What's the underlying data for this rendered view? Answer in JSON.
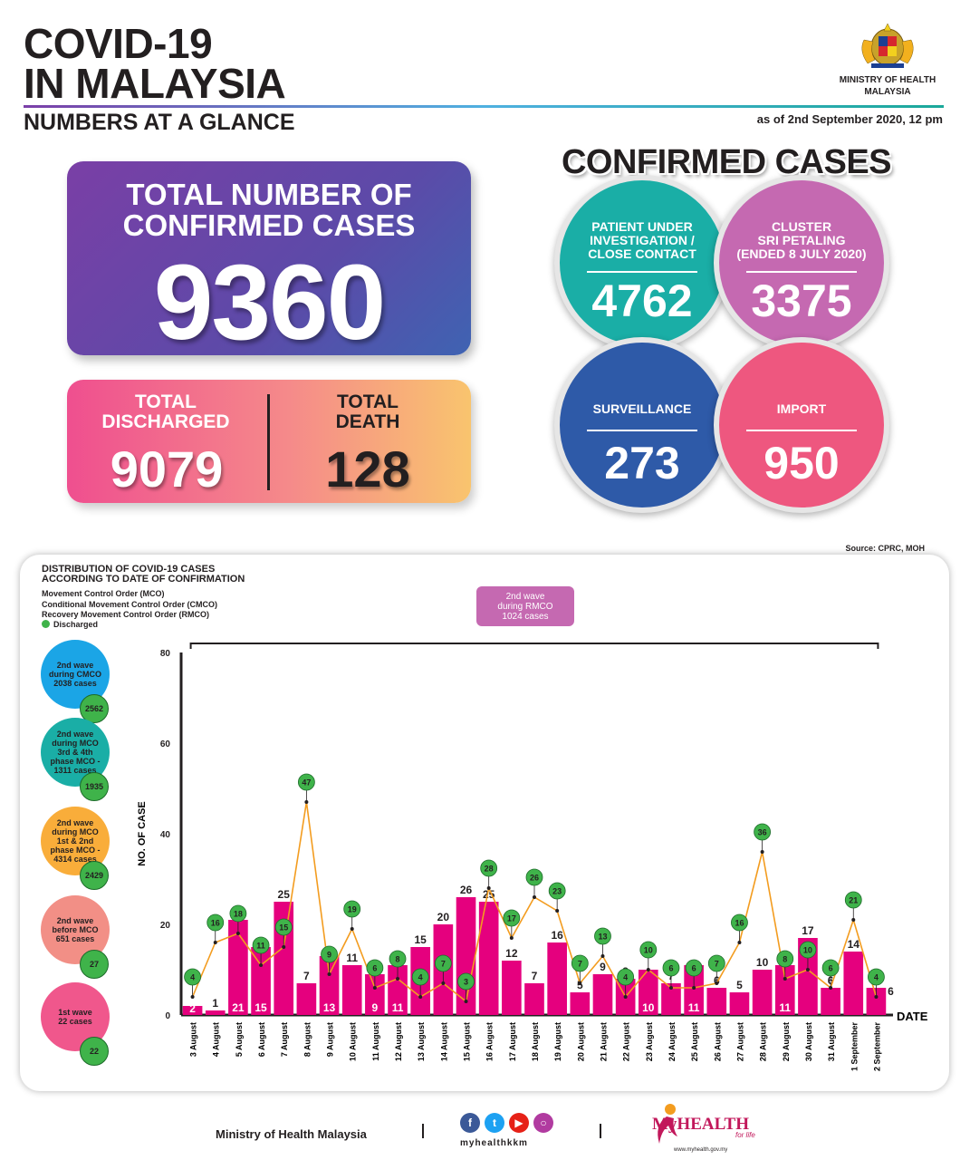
{
  "header": {
    "title_line1": "COVID-19",
    "title_line2": "IN MALAYSIA",
    "subtitle": "NUMBERS AT A GLANCE",
    "ministry_line1": "MINISTRY OF HEALTH",
    "ministry_line2": "MALAYSIA",
    "as_of": "as of 2nd September 2020, 12 pm"
  },
  "totals": {
    "confirmed_label_line1": "TOTAL NUMBER OF",
    "confirmed_label_line2": "CONFIRMED CASES",
    "confirmed_value": "9360",
    "discharged_label_line1": "TOTAL",
    "discharged_label_line2": "DISCHARGED",
    "discharged_value": "9079",
    "death_label_line1": "TOTAL",
    "death_label_line2": "DEATH",
    "death_value": "128"
  },
  "confirmed_cases": {
    "title": "CONFIRMED CASES",
    "pui": {
      "line1": "PATIENT UNDER",
      "line2": "INVESTIGATION /",
      "line3": "CLOSE CONTACT",
      "value": "4762"
    },
    "cluster": {
      "line1": "CLUSTER",
      "line2": "SRI PETALING",
      "line3": "(ENDED 8 JULY 2020)",
      "value": "3375"
    },
    "surveillance": {
      "label": "SURVEILLANCE",
      "value": "273"
    },
    "import": {
      "label": "IMPORT",
      "value": "950"
    }
  },
  "source": "Source: CPRC, MOH",
  "panel": {
    "title_line1": "DISTRIBUTION OF COVID-19 CASES",
    "title_line2": "ACCORDING TO DATE OF CONFIRMATION",
    "legend_mco": "Movement Control Order (MCO)",
    "legend_cmco": "Conditional Movement Control Order (CMCO)",
    "legend_rmco": "Recovery Movement Control Order (RMCO)",
    "legend_discharged": "Discharged",
    "rmco_box": {
      "line1": "2nd wave",
      "line2": "during RMCO",
      "line3": "1024 cases"
    }
  },
  "waves": [
    {
      "lines": [
        "2nd wave",
        "during CMCO",
        "2038 cases"
      ],
      "discharged": "2562",
      "color": "#1ba5e6"
    },
    {
      "lines": [
        "2nd wave",
        "during MCO",
        "3rd & 4th",
        "phase MCO -",
        "1311 cases"
      ],
      "discharged": "1935",
      "color": "#1aaea6"
    },
    {
      "lines": [
        "2nd wave",
        "during MCO",
        "1st & 2nd",
        "phase MCO -",
        "4314 cases"
      ],
      "discharged": "2429",
      "color": "#f9ad3a"
    },
    {
      "lines": [
        "2nd wave",
        "before MCO",
        "651 cases"
      ],
      "discharged": "27",
      "color": "#f28f86"
    },
    {
      "lines": [
        "1st wave",
        "22 cases"
      ],
      "discharged": "22",
      "color": "#f0578c"
    }
  ],
  "chart_data": {
    "type": "bar",
    "categories": [
      "3 August",
      "4 August",
      "5 August",
      "6 August",
      "7 August",
      "8 August",
      "9 August",
      "10 August",
      "11 August",
      "12 August",
      "13 August",
      "14 August",
      "15 August",
      "16 August",
      "17 August",
      "18 August",
      "19 August",
      "20 August",
      "21 August",
      "22 August",
      "23 August",
      "24 August",
      "25 August",
      "26 August",
      "27 August",
      "28 August",
      "29 August",
      "30 August",
      "31 August",
      "1 September",
      "2 September"
    ],
    "series": [
      {
        "name": "",
        "values": [
          2,
          1,
          21,
          15,
          25,
          7,
          13,
          11,
          9,
          11,
          15,
          20,
          26,
          25,
          12,
          7,
          16,
          5,
          9,
          8,
          10,
          7,
          11,
          6,
          5,
          10,
          11,
          17,
          6,
          14,
          6
        ]
      },
      {
        "name": "Discharged",
        "values": [
          4,
          16,
          18,
          11,
          15,
          47,
          9,
          19,
          6,
          8,
          4,
          7,
          3,
          28,
          17,
          26,
          23,
          7,
          13,
          4,
          10,
          6,
          6,
          7,
          16,
          36,
          8,
          10,
          6,
          21,
          4
        ]
      }
    ],
    "xlabel": "DATE",
    "ylabel": "NO. OF CASE",
    "yticks": [
      0,
      20,
      40,
      60,
      80
    ],
    "ylim": [
      0,
      80
    ],
    "bar_color": "#e5007e",
    "line_color": "#f39c1f",
    "marker_color": "#3fb34a"
  },
  "footer": {
    "ministry": "Ministry of Health Malaysia",
    "handle": "myhealthkkm",
    "brand": "MyHEALTH",
    "tagline": "for life",
    "url": "www.myhealth.gov.my",
    "social_icons": [
      "facebook-icon",
      "twitter-icon",
      "youtube-icon",
      "instagram-icon"
    ]
  }
}
